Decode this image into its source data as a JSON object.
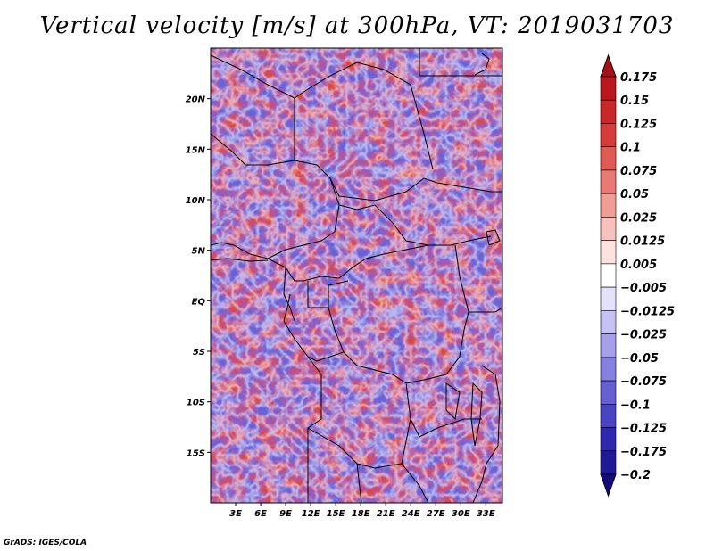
{
  "title": "Vertical velocity [m/s] at 300hPa, VT: 2019031703",
  "credit": "GrADS: IGES/COLA",
  "map": {
    "lon_range": [
      0,
      35
    ],
    "lat_range": [
      -20,
      25
    ],
    "lat_ticks": [
      {
        "value": 20,
        "label": "20N"
      },
      {
        "value": 15,
        "label": "15N"
      },
      {
        "value": 10,
        "label": "10N"
      },
      {
        "value": 5,
        "label": "5N"
      },
      {
        "value": 0,
        "label": "EQ"
      },
      {
        "value": -5,
        "label": "5S"
      },
      {
        "value": -10,
        "label": "10S"
      },
      {
        "value": -15,
        "label": "15S"
      }
    ],
    "lon_ticks": [
      {
        "value": 3,
        "label": "3E"
      },
      {
        "value": 6,
        "label": "6E"
      },
      {
        "value": 9,
        "label": "9E"
      },
      {
        "value": 12,
        "label": "12E"
      },
      {
        "value": 15,
        "label": "15E"
      },
      {
        "value": 18,
        "label": "18E"
      },
      {
        "value": 21,
        "label": "21E"
      },
      {
        "value": 24,
        "label": "24E"
      },
      {
        "value": 27,
        "label": "27E"
      },
      {
        "value": 30,
        "label": "30E"
      },
      {
        "value": 33,
        "label": "33E"
      }
    ]
  },
  "colorbar": {
    "labels": [
      "0.175",
      "0.15",
      "0.125",
      "0.1",
      "0.075",
      "0.05",
      "0.025",
      "0.0125",
      "0.005",
      "−0.005",
      "−0.0125",
      "−0.025",
      "−0.05",
      "−0.075",
      "−0.1",
      "−0.125",
      "−0.175",
      "−0.2"
    ],
    "colors": [
      "#a50f15",
      "#b8181e",
      "#c9282b",
      "#d83c3a",
      "#e15b55",
      "#e97a73",
      "#f09d96",
      "#f7c2bc",
      "#fde3df",
      "#ffffff",
      "#e3e1fb",
      "#c6c2f3",
      "#a6a0ea",
      "#8680df",
      "#6760d2",
      "#4a43c2",
      "#3027af",
      "#1f1897",
      "#140a7c"
    ]
  }
}
